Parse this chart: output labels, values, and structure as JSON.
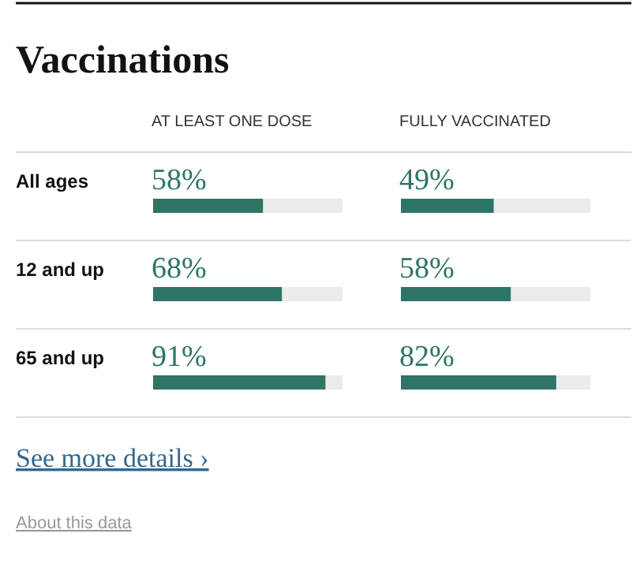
{
  "chart_data": [
    {
      "type": "bar",
      "orientation": "horizontal",
      "title": "Vaccinations",
      "subtitle": "AT LEAST ONE DOSE",
      "categories": [
        "All ages",
        "12 and up",
        "65 and up"
      ],
      "values": [
        58,
        68,
        91
      ],
      "value_labels": [
        "58%",
        "68%",
        "91%"
      ],
      "color": "#2e7566",
      "xlim": [
        0,
        100
      ],
      "annotations": [
        "See more details ›",
        "About this data"
      ]
    },
    {
      "type": "bar",
      "orientation": "horizontal",
      "subtitle": "FULLY VACCINATED",
      "categories": [
        null,
        null,
        null
      ],
      "values": [
        49,
        58,
        82
      ],
      "value_labels": [
        "49%",
        "58%",
        "82%"
      ],
      "color": "#2e7566",
      "xlim": [
        0,
        100
      ]
    }
  ]
}
